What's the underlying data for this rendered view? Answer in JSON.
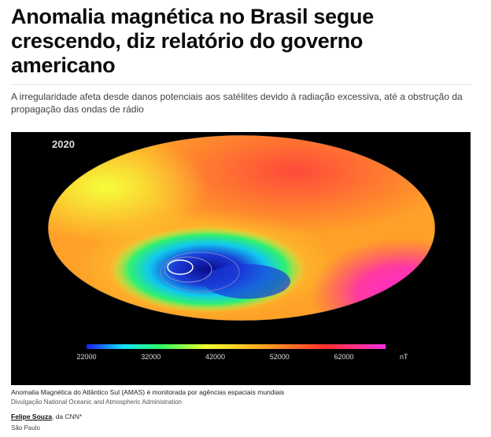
{
  "header": {
    "title": "Anomalia magnética no Brasil segue crescendo, diz relatório do governo americano",
    "subtitle": "A irregularidade afeta desde danos potenciais aos satélites devido à radiação excessiva, até a obstrução da propagação das ondas de rádio"
  },
  "image": {
    "year": "2020",
    "colorbar": {
      "ticks": [
        22000,
        32000,
        42000,
        52000,
        62000
      ],
      "unit": "nT"
    }
  },
  "caption": {
    "text": "Anomalia Magnética do Atlântico Sul (AMAS) é monitorada por agências espaciais mundiais",
    "credit": "Divulgação National Oceanic and Atmospheric Administration"
  },
  "byline": {
    "author": "Felipe Souza",
    "outlet": ", da CNN*",
    "location": "São Paulo"
  }
}
